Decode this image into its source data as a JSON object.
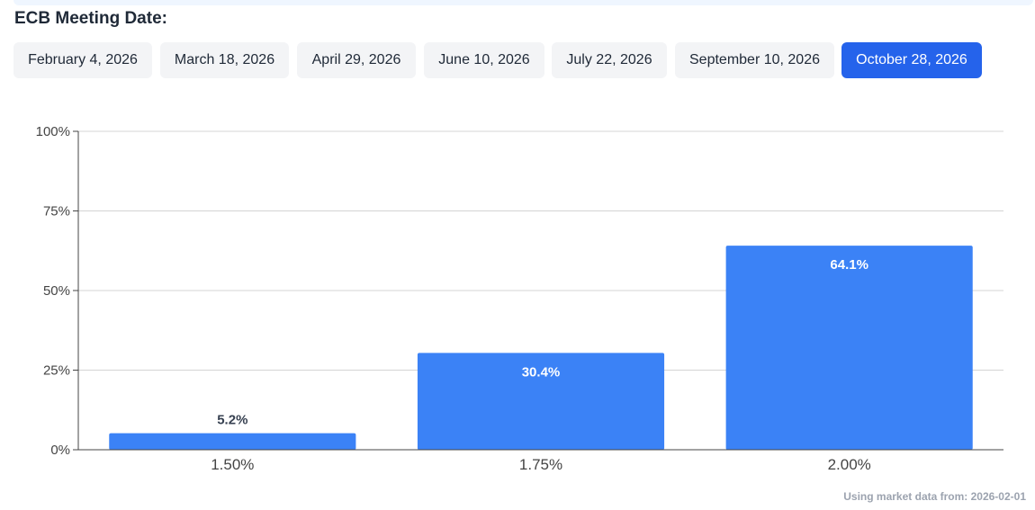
{
  "header": {
    "title": "ECB Meeting Date:"
  },
  "meeting_dates": [
    {
      "label": "February 4, 2026",
      "active": false
    },
    {
      "label": "March 18, 2026",
      "active": false
    },
    {
      "label": "April 29, 2026",
      "active": false
    },
    {
      "label": "June 10, 2026",
      "active": false
    },
    {
      "label": "July 22, 2026",
      "active": false
    },
    {
      "label": "September 10, 2026",
      "active": false
    },
    {
      "label": "October 28, 2026",
      "active": true
    }
  ],
  "colors": {
    "bar": "#3b82f6",
    "active_tab": "#2563eb",
    "tab": "#f3f4f6"
  },
  "chart_data": {
    "type": "bar",
    "categories": [
      "1.50%",
      "1.75%",
      "2.00%"
    ],
    "values": [
      5.2,
      30.4,
      64.1
    ],
    "value_labels": [
      "5.2%",
      "30.4%",
      "64.1%"
    ],
    "yticks": [
      "0%",
      "25%",
      "50%",
      "75%",
      "100%"
    ],
    "ytick_values": [
      0,
      25,
      50,
      75,
      100
    ],
    "ylim": [
      0,
      100
    ],
    "grid": true,
    "legend": "none"
  },
  "footer": {
    "note": "Using market data from: 2026-02-01"
  }
}
